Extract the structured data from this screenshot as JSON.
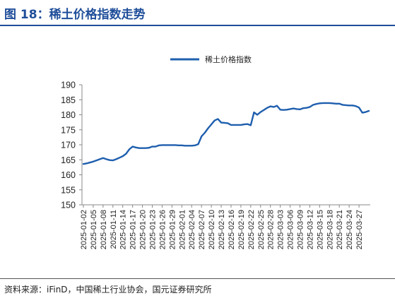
{
  "header": {
    "title": "图 18：稀土价格指数走势"
  },
  "footer": {
    "source": "资料来源：iFinD，中国稀土行业协会，国元证券研究所"
  },
  "colors": {
    "accent": "#1f4e9a",
    "series": "#1f5fae"
  },
  "chart_data": {
    "type": "line",
    "ylim": [
      150,
      190
    ],
    "yticks": [
      150,
      155,
      160,
      165,
      170,
      175,
      180,
      185,
      190
    ],
    "grid": false,
    "legend_position": "top-center",
    "x_tick_labels": [
      "2025-01-02",
      "2025-01-05",
      "2025-01-08",
      "2025-01-11",
      "2025-01-14",
      "2025-01-17",
      "2025-01-20",
      "2025-01-23",
      "2025-01-26",
      "2025-01-29",
      "2025-02-01",
      "2025-02-04",
      "2025-02-07",
      "2025-02-10",
      "2025-02-13",
      "2025-02-16",
      "2025-02-19",
      "2025-02-22",
      "2025-02-25",
      "2025-02-28",
      "2025-03-03",
      "2025-03-06",
      "2025-03-09",
      "2025-03-12",
      "2025-03-15",
      "2025-03-18",
      "2025-03-21",
      "2025-03-24",
      "2025-03-27"
    ],
    "series": [
      {
        "name": "稀土价格指数",
        "points": [
          [
            "2025-01-02",
            163.6
          ],
          [
            "2025-01-03",
            163.8
          ],
          [
            "2025-01-04",
            164.1
          ],
          [
            "2025-01-05",
            164.4
          ],
          [
            "2025-01-06",
            164.8
          ],
          [
            "2025-01-07",
            165.2
          ],
          [
            "2025-01-08",
            165.6
          ],
          [
            "2025-01-09",
            165.2
          ],
          [
            "2025-01-10",
            164.9
          ],
          [
            "2025-01-11",
            164.8
          ],
          [
            "2025-01-12",
            165.2
          ],
          [
            "2025-01-13",
            165.7
          ],
          [
            "2025-01-14",
            166.2
          ],
          [
            "2025-01-15",
            167.0
          ],
          [
            "2025-01-16",
            168.5
          ],
          [
            "2025-01-17",
            169.4
          ],
          [
            "2025-01-18",
            169.1
          ],
          [
            "2025-01-19",
            168.9
          ],
          [
            "2025-01-20",
            168.9
          ],
          [
            "2025-01-21",
            168.9
          ],
          [
            "2025-01-22",
            169.0
          ],
          [
            "2025-01-23",
            169.4
          ],
          [
            "2025-01-24",
            169.4
          ],
          [
            "2025-01-25",
            169.8
          ],
          [
            "2025-01-26",
            169.9
          ],
          [
            "2025-01-27",
            169.9
          ],
          [
            "2025-01-28",
            169.9
          ],
          [
            "2025-01-29",
            169.9
          ],
          [
            "2025-01-30",
            169.9
          ],
          [
            "2025-01-31",
            169.8
          ],
          [
            "2025-02-01",
            169.8
          ],
          [
            "2025-02-02",
            169.7
          ],
          [
            "2025-02-03",
            169.7
          ],
          [
            "2025-02-04",
            169.7
          ],
          [
            "2025-02-05",
            169.8
          ],
          [
            "2025-02-06",
            170.2
          ],
          [
            "2025-02-07",
            172.8
          ],
          [
            "2025-02-08",
            174.0
          ],
          [
            "2025-02-09",
            175.5
          ],
          [
            "2025-02-10",
            176.8
          ],
          [
            "2025-02-11",
            178.1
          ],
          [
            "2025-02-12",
            178.6
          ],
          [
            "2025-02-13",
            177.4
          ],
          [
            "2025-02-14",
            177.3
          ],
          [
            "2025-02-15",
            177.2
          ],
          [
            "2025-02-16",
            176.6
          ],
          [
            "2025-02-17",
            176.6
          ],
          [
            "2025-02-18",
            176.6
          ],
          [
            "2025-02-19",
            176.6
          ],
          [
            "2025-02-20",
            176.8
          ],
          [
            "2025-02-21",
            176.9
          ],
          [
            "2025-02-22",
            176.5
          ],
          [
            "2025-02-23",
            180.8
          ],
          [
            "2025-02-24",
            180.0
          ],
          [
            "2025-02-25",
            180.9
          ],
          [
            "2025-02-26",
            181.6
          ],
          [
            "2025-02-27",
            182.3
          ],
          [
            "2025-02-28",
            182.8
          ],
          [
            "2025-03-01",
            182.6
          ],
          [
            "2025-03-02",
            183.0
          ],
          [
            "2025-03-03",
            181.7
          ],
          [
            "2025-03-04",
            181.6
          ],
          [
            "2025-03-05",
            181.7
          ],
          [
            "2025-03-06",
            181.9
          ],
          [
            "2025-03-07",
            182.1
          ],
          [
            "2025-03-08",
            181.9
          ],
          [
            "2025-03-09",
            181.8
          ],
          [
            "2025-03-10",
            182.2
          ],
          [
            "2025-03-11",
            182.3
          ],
          [
            "2025-03-12",
            182.6
          ],
          [
            "2025-03-13",
            183.3
          ],
          [
            "2025-03-14",
            183.6
          ],
          [
            "2025-03-15",
            183.8
          ],
          [
            "2025-03-16",
            183.9
          ],
          [
            "2025-03-17",
            183.9
          ],
          [
            "2025-03-18",
            183.9
          ],
          [
            "2025-03-19",
            183.8
          ],
          [
            "2025-03-20",
            183.7
          ],
          [
            "2025-03-21",
            183.7
          ],
          [
            "2025-03-22",
            183.3
          ],
          [
            "2025-03-23",
            183.2
          ],
          [
            "2025-03-24",
            183.1
          ],
          [
            "2025-03-25",
            183.1
          ],
          [
            "2025-03-26",
            182.9
          ],
          [
            "2025-03-27",
            182.4
          ],
          [
            "2025-03-28",
            180.7
          ],
          [
            "2025-03-29",
            180.9
          ],
          [
            "2025-03-30",
            181.3
          ]
        ]
      }
    ]
  }
}
